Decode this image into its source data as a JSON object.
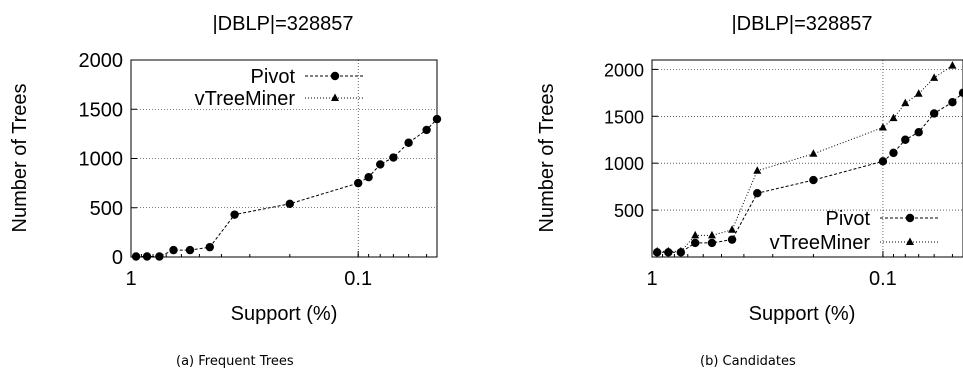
{
  "captions": [
    "(a) Frequent Trees",
    "(b) Candidates"
  ],
  "chart_data": [
    {
      "type": "line",
      "title": "|DBLP|=328857",
      "xlabel": "Support (%)",
      "ylabel": "Number of Trees",
      "x_scale": "log",
      "x_reversed": true,
      "xlim": [
        1,
        0.045
      ],
      "ylim": [
        0,
        2000
      ],
      "x_ticks": [
        "1",
        "0.1"
      ],
      "x_tick_values": [
        1,
        0.1
      ],
      "y_ticks": [
        "0",
        "500",
        "1000",
        "1500",
        "2000"
      ],
      "y_tick_values": [
        0,
        500,
        1000,
        1500,
        2000
      ],
      "grid": true,
      "legend": "top-center",
      "series": [
        {
          "name": "Pivot",
          "marker": "circle",
          "x": [
            0.95,
            0.85,
            0.75,
            0.65,
            0.55,
            0.45,
            0.35,
            0.2,
            0.1,
            0.09,
            0.08,
            0.07,
            0.06,
            0.05
          ],
          "y": [
            5,
            5,
            5,
            70,
            70,
            100,
            430,
            540,
            750,
            810,
            940,
            1010,
            1160,
            1290
          ]
        },
        {
          "name": "vTreeMiner",
          "marker": "triangle",
          "x": [],
          "y": []
        }
      ],
      "extra_point_note": "",
      "extra_x": 0.045,
      "extra_y": 1400
    },
    {
      "type": "line",
      "title": "|DBLP|=328857",
      "xlabel": "Support (%)",
      "ylabel": "Number of Trees",
      "x_scale": "log",
      "x_reversed": true,
      "xlim": [
        1,
        0.045
      ],
      "ylim": [
        0,
        2100
      ],
      "x_ticks": [
        "1",
        "0.1"
      ],
      "x_tick_values": [
        1,
        0.1
      ],
      "y_ticks": [
        "500",
        "1000",
        "1500",
        "2000"
      ],
      "y_tick_values": [
        500,
        1000,
        1500,
        2000
      ],
      "grid": true,
      "legend": "bottom-right",
      "series": [
        {
          "name": "Pivot",
          "marker": "circle",
          "x": [
            0.95,
            0.85,
            0.75,
            0.65,
            0.55,
            0.45,
            0.35,
            0.2,
            0.1,
            0.09,
            0.08,
            0.07,
            0.06,
            0.05,
            0.045
          ],
          "y": [
            50,
            50,
            50,
            150,
            150,
            185,
            680,
            820,
            1020,
            1110,
            1250,
            1330,
            1530,
            1650,
            1750
          ]
        },
        {
          "name": "vTreeMiner",
          "marker": "triangle",
          "x": [
            0.95,
            0.85,
            0.75,
            0.65,
            0.55,
            0.45,
            0.35,
            0.2,
            0.1,
            0.09,
            0.08,
            0.07,
            0.06,
            0.05
          ],
          "y": [
            60,
            60,
            60,
            230,
            230,
            290,
            920,
            1100,
            1380,
            1480,
            1640,
            1740,
            1910,
            2040
          ]
        }
      ]
    }
  ]
}
